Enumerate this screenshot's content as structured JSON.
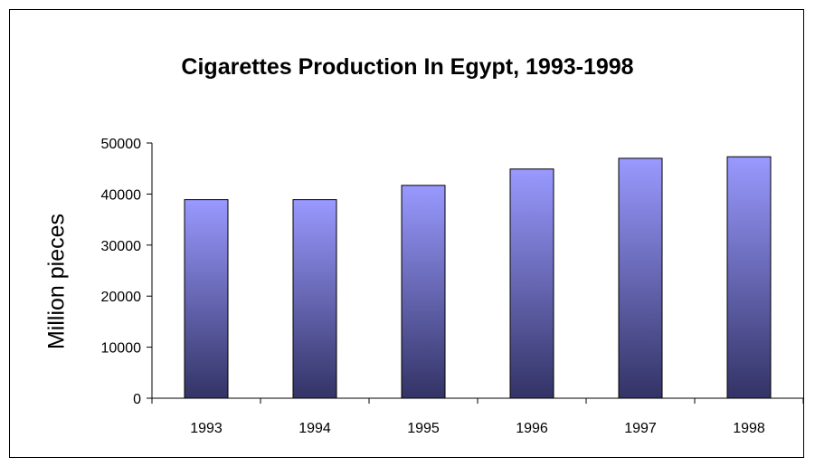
{
  "chart_data": {
    "type": "bar",
    "title": "Cigarettes Production In Egypt, 1993-1998",
    "xlabel": "",
    "ylabel": "Million pieces",
    "categories": [
      "1993",
      "1994",
      "1995",
      "1996",
      "1997",
      "1998"
    ],
    "values": [
      38900,
      38900,
      41700,
      44900,
      47000,
      47300
    ],
    "ylim": [
      0,
      50000
    ],
    "yticks": [
      "0",
      "10000",
      "20000",
      "30000",
      "40000",
      "50000"
    ],
    "grid": false,
    "legend": "none",
    "colors": {
      "bar_top": "#9999ff",
      "bar_bottom": "#333366",
      "axis": "#000000"
    }
  }
}
